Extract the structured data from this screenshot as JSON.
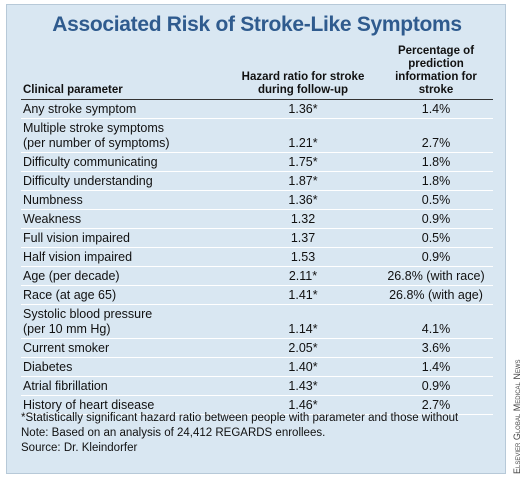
{
  "header": {
    "title": "Associated Risk of Stroke-Like Symptoms"
  },
  "table": {
    "header": [
      "Clinical parameter",
      "Hazard ratio for stroke\nduring follow-up",
      "Percentage of prediction\ninformation for stroke"
    ],
    "rows": [
      [
        "Any stroke symptom",
        "1.36*",
        "1.4%"
      ],
      [
        "Multiple stroke symptoms\n(per number of symptoms)",
        "1.21*",
        "2.7%"
      ],
      [
        "Difficulty communicating",
        "1.75*",
        "1.8%"
      ],
      [
        "Difficulty understanding",
        "1.87*",
        "1.8%"
      ],
      [
        "Numbness",
        "1.36*",
        "0.5%"
      ],
      [
        "Weakness",
        "1.32",
        "0.9%"
      ],
      [
        "Full vision impaired",
        "1.37",
        "0.5%"
      ],
      [
        "Half vision impaired",
        "1.53",
        "0.9%"
      ],
      [
        "Age (per decade)",
        "2.11*",
        "26.8% (with race)"
      ],
      [
        "Race (at age 65)",
        "1.41*",
        "26.8% (with age)"
      ],
      [
        "Systolic blood pressure\n(per 10 mm Hg)",
        "1.14*",
        "4.1%"
      ],
      [
        "Current smoker",
        "2.05*",
        "3.6%"
      ],
      [
        "Diabetes",
        "1.40*",
        "1.4%"
      ],
      [
        "Atrial fibrillation",
        "1.43*",
        "0.9%"
      ],
      [
        "History of heart disease",
        "1.46*",
        "2.7%"
      ]
    ]
  },
  "footnotes": [
    "*Statistically significant hazard ratio between people with parameter and those without",
    "Note: Based on an analysis of 24,412 REGARDS enrollees.",
    "Source: Dr. Kleindorfer"
  ],
  "credit": "Elsevier Global Medical News"
}
